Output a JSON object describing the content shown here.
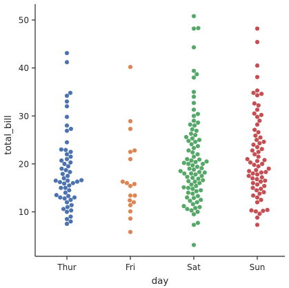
{
  "chart_data": {
    "type": "scatter",
    "style": "swarm",
    "xlabel": "day",
    "ylabel": "total_bill",
    "categories": [
      "Thur",
      "Fri",
      "Sat",
      "Sun"
    ],
    "ylim": [
      1,
      53
    ],
    "yticks": [
      10,
      20,
      30,
      40,
      50
    ],
    "grid": false,
    "colors": [
      "#4c72b0",
      "#dd8452",
      "#55a868",
      "#c44e52"
    ],
    "series": [
      {
        "values": [
          7.5,
          8.0,
          8.5,
          9.0,
          10.0,
          10.3,
          10.6,
          11.0,
          11.4,
          12.0,
          12.5,
          12.8,
          13.0,
          13.0,
          13.3,
          13.5,
          14.0,
          14.5,
          15.0,
          15.0,
          15.5,
          15.9,
          16.0,
          16.2,
          16.3,
          16.5,
          16.5,
          16.6,
          17.0,
          17.5,
          17.9,
          18.3,
          18.7,
          19.0,
          19.5,
          20.0,
          20.3,
          20.7,
          21.0,
          21.5,
          22.0,
          22.5,
          22.9,
          23.0,
          24.5,
          26.9,
          27.3,
          28.0,
          29.8,
          32.0,
          33.0,
          34.2,
          34.8,
          41.2,
          43.1
        ]
      },
      {
        "values": [
          5.8,
          8.6,
          10.1,
          11.4,
          12.0,
          12.4,
          13.4,
          13.4,
          15.4,
          15.8,
          16.0,
          16.3,
          21.0,
          22.5,
          22.8,
          27.3,
          28.9,
          40.2
        ]
      },
      {
        "values": [
          3.1,
          7.3,
          7.7,
          9.5,
          10.0,
          10.3,
          10.6,
          10.8,
          11.0,
          11.2,
          11.6,
          12.0,
          12.3,
          12.5,
          12.9,
          13.0,
          13.3,
          13.8,
          14.0,
          14.3,
          14.5,
          14.8,
          15.0,
          15.1,
          15.4,
          15.7,
          16.0,
          16.3,
          16.4,
          16.6,
          16.9,
          17.1,
          17.3,
          17.5,
          17.8,
          18.0,
          18.0,
          18.2,
          18.3,
          18.5,
          18.8,
          19.0,
          19.1,
          19.4,
          19.7,
          20.0,
          20.0,
          20.2,
          20.4,
          20.5,
          20.7,
          20.9,
          21.0,
          21.5,
          22.0,
          22.4,
          22.8,
          23.3,
          23.7,
          24.1,
          24.6,
          24.8,
          25.0,
          25.3,
          25.6,
          26.0,
          26.3,
          26.9,
          27.2,
          28.0,
          28.2,
          28.6,
          29.0,
          30.0,
          30.4,
          31.3,
          32.7,
          34.0,
          35.0,
          38.0,
          38.7,
          39.4,
          44.3,
          48.2,
          48.3,
          50.8
        ]
      },
      {
        "values": [
          7.3,
          8.8,
          9.6,
          10.1,
          10.2,
          10.3,
          10.4,
          12.0,
          12.5,
          13.0,
          13.4,
          13.8,
          14.1,
          14.5,
          14.8,
          15.0,
          15.4,
          15.7,
          16.0,
          16.3,
          16.5,
          16.8,
          17.0,
          17.2,
          17.5,
          17.8,
          18.0,
          18.2,
          18.3,
          18.5,
          18.7,
          19.0,
          19.5,
          19.8,
          20.0,
          20.3,
          20.6,
          20.8,
          21.0,
          21.5,
          22.0,
          22.5,
          22.8,
          23.1,
          23.5,
          24.0,
          24.3,
          24.6,
          25.0,
          25.5,
          25.9,
          26.6,
          27.1,
          28.2,
          29.0,
          29.8,
          30.2,
          30.5,
          31.3,
          32.2,
          32.6,
          34.3,
          34.6,
          34.8,
          35.3,
          38.1,
          40.5,
          45.4,
          48.2
        ]
      }
    ]
  }
}
